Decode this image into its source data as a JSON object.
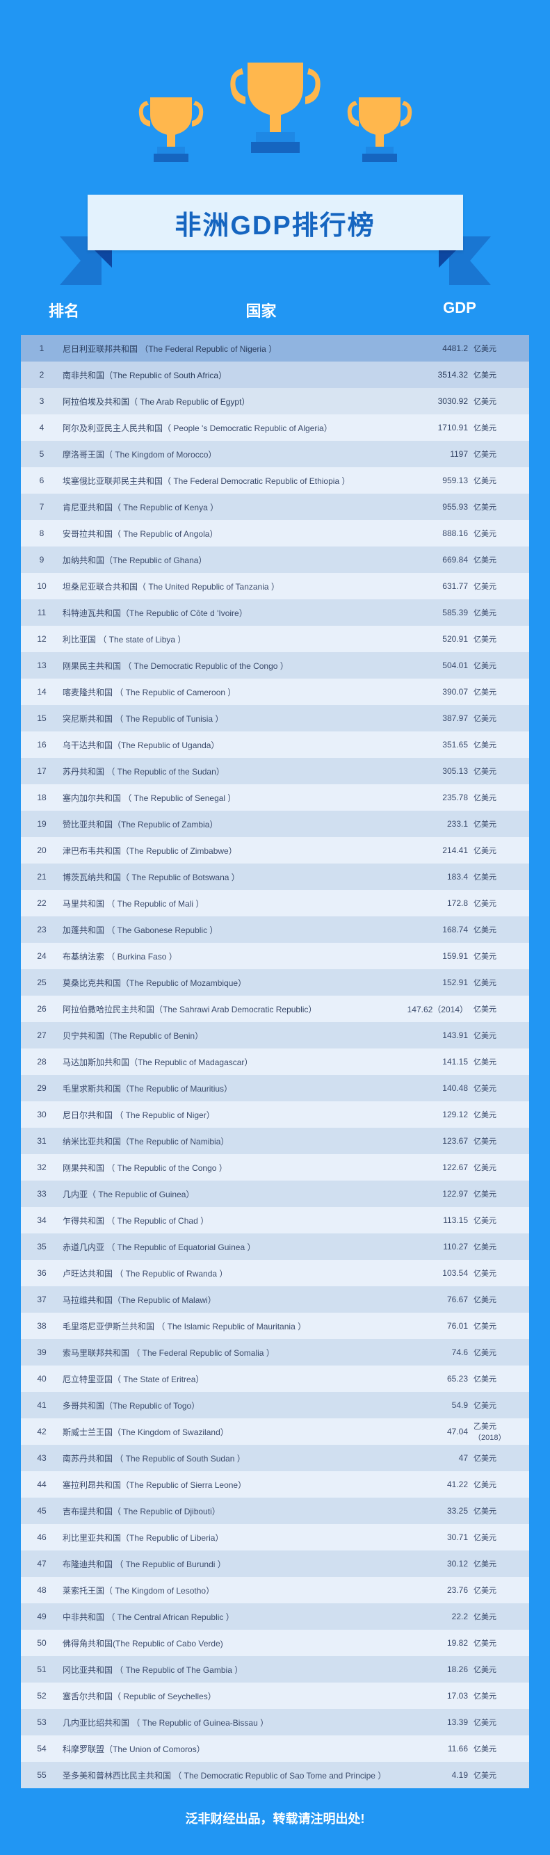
{
  "title": "非洲GDP排行榜",
  "columns": {
    "rank": "排名",
    "country": "国家",
    "gdp": "GDP"
  },
  "unit_default": "亿美元",
  "footer": "泛非财经出品，转载请注明出处!",
  "colors": {
    "page_bg": "#2196f3",
    "banner_bg": "#e3f2fd",
    "banner_text": "#1565c0",
    "fold": "#1976d2",
    "fold_shadow": "#0d47a1",
    "trophy_cup": "#ffb74d",
    "trophy_base": "#1e88e5",
    "row_top1": "#90b4e0",
    "row_top2": "#c3d5ec",
    "row_top3": "#d8e4f2",
    "row_light": "#e8f0fa",
    "row_dark": "#d0dff0",
    "row_text": "#3a4a6b",
    "header_text": "#ffffff"
  },
  "rows": [
    {
      "rank": 1,
      "country": "尼日利亚联邦共和国 （The Federal Republic of  Nigeria ）",
      "gdp": "4481.2",
      "unit": "亿美元"
    },
    {
      "rank": 2,
      "country": "南非共和国（The Republic of South Africa）",
      "gdp": "3514.32",
      "unit": "亿美元"
    },
    {
      "rank": 3,
      "country": "阿拉伯埃及共和国（ The Arab Republic of  Egypt）",
      "gdp": "3030.92",
      "unit": "亿美元"
    },
    {
      "rank": 4,
      "country": "阿尔及利亚民主人民共和国（ People 's Democratic Republic of Algeria）",
      "gdp": "1710.91",
      "unit": "亿美元"
    },
    {
      "rank": 5,
      "country": "摩洛哥王国（ The Kingdom of Morocco）",
      "gdp": "1197",
      "unit": "亿美元"
    },
    {
      "rank": 6,
      "country": "埃塞俄比亚联邦民主共和国（ The Federal Democratic Republic of  Ethiopia ）",
      "gdp": "959.13",
      "unit": "亿美元"
    },
    {
      "rank": 7,
      "country": "肯尼亚共和国（ The Republic of Kenya ）",
      "gdp": "955.93",
      "unit": "亿美元"
    },
    {
      "rank": 8,
      "country": "安哥拉共和国（ The Republic of Angola）",
      "gdp": "888.16",
      "unit": "亿美元"
    },
    {
      "rank": 9,
      "country": "加纳共和国（The Republic of Ghana）",
      "gdp": "669.84",
      "unit": "亿美元"
    },
    {
      "rank": 10,
      "country": "坦桑尼亚联合共和国（ The United Republic of Tanzania ）",
      "gdp": "631.77",
      "unit": "亿美元"
    },
    {
      "rank": 11,
      "country": "科特迪瓦共和国（The Republic of Côte d 'Ivoire）",
      "gdp": "585.39",
      "unit": "亿美元"
    },
    {
      "rank": 12,
      "country": "利比亚国 （ The state of  Libya ）",
      "gdp": "520.91",
      "unit": "亿美元"
    },
    {
      "rank": 13,
      "country": "刚果民主共和国 （ The Democratic Republic of the Congo    ）",
      "gdp": "504.01",
      "unit": "亿美元"
    },
    {
      "rank": 14,
      "country": "喀麦隆共和国 （ The Republic of Cameroon    ）",
      "gdp": "390.07",
      "unit": "亿美元"
    },
    {
      "rank": 15,
      "country": "突尼斯共和国 （ The Republic of Tunisia ）",
      "gdp": "387.97",
      "unit": "亿美元"
    },
    {
      "rank": 16,
      "country": "乌干达共和国（The Republic of Uganda）",
      "gdp": "351.65",
      "unit": "亿美元"
    },
    {
      "rank": 17,
      "country": "苏丹共和国 （ The Republic of the Sudan）",
      "gdp": "305.13",
      "unit": "亿美元"
    },
    {
      "rank": 18,
      "country": "塞内加尔共和国 （ The Republic of Senegal ）",
      "gdp": "235.78",
      "unit": "亿美元"
    },
    {
      "rank": 19,
      "country": "赞比亚共和国（The Republic of Zambia）",
      "gdp": "233.1",
      "unit": "亿美元"
    },
    {
      "rank": 20,
      "country": "津巴布韦共和国（The Republic of  Zimbabwe）",
      "gdp": "214.41",
      "unit": "亿美元"
    },
    {
      "rank": 21,
      "country": "博茨瓦纳共和国（ The Republic of Botswana ）",
      "gdp": "183.4",
      "unit": "亿美元"
    },
    {
      "rank": 22,
      "country": "马里共和国 （ The Republic of  Mali ）",
      "gdp": "172.8",
      "unit": "亿美元"
    },
    {
      "rank": 23,
      "country": "加蓬共和国 （ The Gabonese Republic    ）",
      "gdp": "168.74",
      "unit": "亿美元"
    },
    {
      "rank": 24,
      "country": "布基纳法索 （ Burkina Faso ）",
      "gdp": "159.91",
      "unit": "亿美元"
    },
    {
      "rank": 25,
      "country": "莫桑比克共和国（The Republic of  Mozambique）",
      "gdp": "152.91",
      "unit": "亿美元"
    },
    {
      "rank": 26,
      "country": "阿拉伯撒哈拉民主共和国（The Sahrawi Arab Democratic Republic）",
      "gdp": "147.62（2014）",
      "unit": "亿美元"
    },
    {
      "rank": 27,
      "country": "贝宁共和国（The Republic of Benin）",
      "gdp": "143.91",
      "unit": "亿美元"
    },
    {
      "rank": 28,
      "country": "马达加斯加共和国（The Republic of Madagascar）",
      "gdp": "141.15",
      "unit": "亿美元"
    },
    {
      "rank": 29,
      "country": "毛里求斯共和国（The Republic of Mauritius）",
      "gdp": "140.48",
      "unit": "亿美元"
    },
    {
      "rank": 30,
      "country": "尼日尔共和国 （ The Republic of  Niger）",
      "gdp": "129.12",
      "unit": "亿美元"
    },
    {
      "rank": 31,
      "country": "纳米比亚共和国（The Republic of Namibia）",
      "gdp": "123.67",
      "unit": "亿美元"
    },
    {
      "rank": 32,
      "country": "刚果共和国 （ The Republic of the Congo ）",
      "gdp": "122.67",
      "unit": "亿美元"
    },
    {
      "rank": 33,
      "country": "几内亚（ The Republic of Guinea）",
      "gdp": "122.97",
      "unit": "亿美元"
    },
    {
      "rank": 34,
      "country": "乍得共和国 （ The Republic of  Chad ）",
      "gdp": "113.15",
      "unit": "亿美元"
    },
    {
      "rank": 35,
      "country": "赤道几内亚 （ The Republic of  Equatorial Guinea    ）",
      "gdp": "110.27",
      "unit": "亿美元"
    },
    {
      "rank": 36,
      "country": "卢旺达共和国 （ The Republic of  Rwanda ）",
      "gdp": "103.54",
      "unit": "亿美元"
    },
    {
      "rank": 37,
      "country": "马拉维共和国（The Republic of Malawi）",
      "gdp": "76.67",
      "unit": "亿美元"
    },
    {
      "rank": 38,
      "country": "毛里塔尼亚伊斯兰共和国 （ The Islamic Republic of Mauritania ）",
      "gdp": "76.01",
      "unit": "亿美元"
    },
    {
      "rank": 39,
      "country": "索马里联邦共和国 （ The Federal Republic of Somalia ）",
      "gdp": "74.6",
      "unit": "亿美元"
    },
    {
      "rank": 40,
      "country": "厄立特里亚国（ The State of Eritrea）",
      "gdp": "65.23",
      "unit": "亿美元"
    },
    {
      "rank": 41,
      "country": "多哥共和国（The Republic of  Togo）",
      "gdp": "54.9",
      "unit": "亿美元"
    },
    {
      "rank": 42,
      "country": "斯威士兰王国（The Kingdom of  Swaziland）",
      "gdp": "47.04",
      "unit": "乙美元（2018）"
    },
    {
      "rank": 43,
      "country": "南苏丹共和国 （ The Republic of South Sudan ）",
      "gdp": "47",
      "unit": "亿美元"
    },
    {
      "rank": 44,
      "country": "塞拉利昂共和国（The Republic of Sierra Leone）",
      "gdp": "41.22",
      "unit": "亿美元"
    },
    {
      "rank": 45,
      "country": "吉布提共和国（ The Republic of Djibouti）",
      "gdp": "33.25",
      "unit": "亿美元"
    },
    {
      "rank": 46,
      "country": "利比里亚共和国（The Republic of Liberia）",
      "gdp": "30.71",
      "unit": "亿美元"
    },
    {
      "rank": 47,
      "country": "布隆迪共和国 （ The Republic of Burundi ）",
      "gdp": "30.12",
      "unit": "亿美元"
    },
    {
      "rank": 48,
      "country": "莱索托王国（ The Kingdom of Lesotho）",
      "gdp": "23.76",
      "unit": "亿美元"
    },
    {
      "rank": 49,
      "country": "中非共和国 （ The Central African Republic ）",
      "gdp": "22.2",
      "unit": "亿美元"
    },
    {
      "rank": 50,
      "country": "佛得角共和国(The Republic of Cabo Verde)",
      "gdp": "19.82",
      "unit": "亿美元"
    },
    {
      "rank": 51,
      "country": "冈比亚共和国 （ The Republic of  The Gambia ）",
      "gdp": "18.26",
      "unit": "亿美元"
    },
    {
      "rank": 52,
      "country": "塞舌尔共和国（ Republic of Seychelles）",
      "gdp": "17.03",
      "unit": "亿美元"
    },
    {
      "rank": 53,
      "country": "几内亚比绍共和国 （ The Republic of Guinea-Bissau ）",
      "gdp": "13.39",
      "unit": "亿美元"
    },
    {
      "rank": 54,
      "country": "科摩罗联盟（The Union of Comoros）",
      "gdp": "11.66",
      "unit": "亿美元"
    },
    {
      "rank": 55,
      "country": "圣多美和普林西比民主共和国 （ The Democratic Republic of Sao Tome and Principe ）",
      "gdp": "4.19",
      "unit": "亿美元"
    }
  ]
}
